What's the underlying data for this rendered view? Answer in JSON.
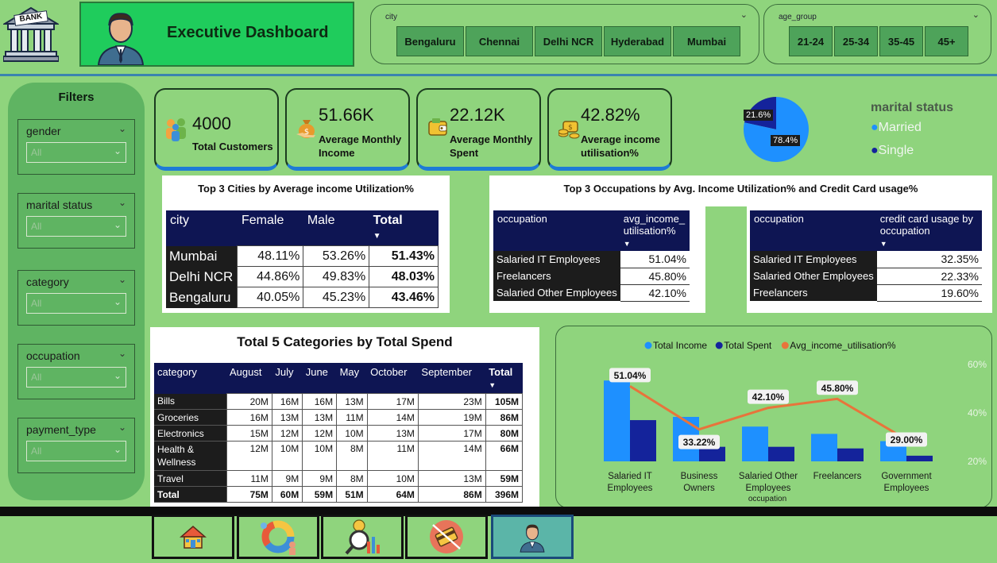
{
  "header": {
    "logo_text": "BANK",
    "title": "Executive Dashboard",
    "city_slicer": {
      "label": "city",
      "options": [
        "Bengaluru",
        "Chennai",
        "Delhi NCR",
        "Hyderabad",
        "Mumbai"
      ]
    },
    "age_slicer": {
      "label": "age_group",
      "options": [
        "21-24",
        "25-34",
        "35-45",
        "45+"
      ]
    }
  },
  "filters": {
    "title": "Filters",
    "items": [
      {
        "label": "gender",
        "value": "All"
      },
      {
        "label": "marital status",
        "value": "All"
      },
      {
        "label": "category",
        "value": "All"
      },
      {
        "label": "occupation",
        "value": "All"
      },
      {
        "label": "payment_type",
        "value": "All"
      }
    ]
  },
  "kpis": [
    {
      "value": "4000",
      "label": "Total Customers",
      "icon": "people-icon"
    },
    {
      "value": "51.66K",
      "label_1": "Average Monthly",
      "label_2": "Income",
      "icon": "money-bag-icon"
    },
    {
      "value": "22.12K",
      "label_1": "Average Monthly",
      "label_2": "Spent",
      "icon": "wallet-icon"
    },
    {
      "value": "42.82%",
      "label_1": "Average income",
      "label_2": "utilisation%",
      "icon": "coins-icon"
    }
  ],
  "marital_pie": {
    "title": "marital status",
    "slices": [
      {
        "label": "Married",
        "value": 78.4,
        "display": "78.4%",
        "color": "#1e90ff"
      },
      {
        "label": "Single",
        "value": 21.6,
        "display": "21.6%",
        "color": "#14239b"
      }
    ]
  },
  "cities_table": {
    "title": "Top 3 Cities by Average income Utilization%",
    "columns": [
      "city",
      "Female",
      "Male",
      "Total"
    ],
    "rows": [
      [
        "Mumbai",
        "48.11%",
        "53.26%",
        "51.43%"
      ],
      [
        "Delhi NCR",
        "44.86%",
        "49.83%",
        "48.03%"
      ],
      [
        "Bengaluru",
        "40.05%",
        "45.23%",
        "43.46%"
      ]
    ]
  },
  "occupations": {
    "title": "Top 3 Occupations by Avg. Income Utilization% and Credit Card usage%",
    "util_table": {
      "col1": "occupation",
      "col2_line1": "avg_income_",
      "col2_line2": "utilisation%",
      "rows": [
        [
          "Salaried IT Employees",
          "51.04%"
        ],
        [
          "Freelancers",
          "45.80%"
        ],
        [
          "Salaried Other Employees",
          "42.10%"
        ]
      ]
    },
    "cc_table": {
      "col1": "occupation",
      "col2_line1": "credit card usage by",
      "col2_line2": "occupation",
      "rows": [
        [
          "Salaried IT Employees",
          "32.35%"
        ],
        [
          "Salaried Other Employees",
          "22.33%"
        ],
        [
          "Freelancers",
          "19.60%"
        ]
      ]
    }
  },
  "categories_table": {
    "title": "Total 5 Categories by Total Spend",
    "columns": [
      "category",
      "August",
      "July",
      "June",
      "May",
      "October",
      "September",
      "Total"
    ],
    "rows": [
      [
        "Bills",
        "20M",
        "16M",
        "16M",
        "13M",
        "17M",
        "23M",
        "105M"
      ],
      [
        "Groceries",
        "16M",
        "13M",
        "13M",
        "11M",
        "14M",
        "19M",
        "86M"
      ],
      [
        "Electronics",
        "15M",
        "12M",
        "12M",
        "10M",
        "13M",
        "17M",
        "80M"
      ],
      [
        "Health & Wellness",
        "12M",
        "10M",
        "10M",
        "8M",
        "11M",
        "14M",
        "66M"
      ],
      [
        "Travel",
        "11M",
        "9M",
        "9M",
        "8M",
        "10M",
        "13M",
        "59M"
      ]
    ],
    "total_row": [
      "Total",
      "75M",
      "60M",
      "59M",
      "51M",
      "64M",
      "86M",
      "396M"
    ]
  },
  "chart_data": {
    "type": "bar",
    "legend": [
      "Total Income",
      "Total Spent",
      "Avg_income_utilisation%"
    ],
    "colors": [
      "#1e90ff",
      "#14239b",
      "#e8743b"
    ],
    "categories": [
      "Salaried IT Employees",
      "Business Owners",
      "Salaried Other Employees",
      "Freelancers",
      "Government Employees"
    ],
    "xlabel": "occupation",
    "series": [
      {
        "name": "Total Income",
        "values": [
          100,
          55,
          43,
          34,
          25
        ]
      },
      {
        "name": "Total Spent",
        "values": [
          51,
          18,
          18,
          16,
          7
        ]
      },
      {
        "name": "Avg_income_utilisation%",
        "values": [
          51.04,
          33.22,
          42.1,
          45.8,
          29.0
        ],
        "labels": [
          "51.04%",
          "33.22%",
          "42.10%",
          "45.80%",
          "29.00%"
        ]
      }
    ],
    "right_axis_ticks": [
      "60%",
      "40%",
      "20%"
    ],
    "right_axis_range": [
      20,
      60
    ]
  },
  "nav": [
    {
      "icon": "home-icon"
    },
    {
      "icon": "donut-chart-icon"
    },
    {
      "icon": "analytics-icon"
    },
    {
      "icon": "credit-card-icon"
    },
    {
      "icon": "person-icon",
      "active": true
    }
  ]
}
